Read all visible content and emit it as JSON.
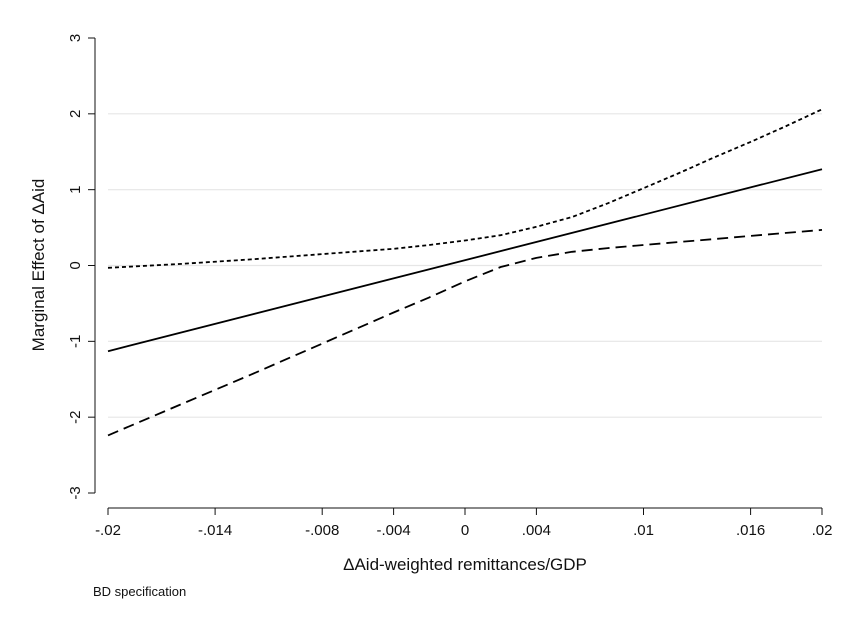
{
  "chart_data": {
    "type": "line",
    "title": "",
    "xlabel": "ΔAid-weighted remittances/GDP",
    "ylabel": "Marginal Effect of ΔAid",
    "note": "BD specification",
    "xlim": [
      -0.02,
      0.02
    ],
    "ylim": [
      -3,
      3
    ],
    "x_ticks": [
      {
        "value": -0.02,
        "label": "-.02"
      },
      {
        "value": -0.014,
        "label": "-.014"
      },
      {
        "value": -0.008,
        "label": "-.008"
      },
      {
        "value": -0.004,
        "label": "-.004"
      },
      {
        "value": 0,
        "label": "0"
      },
      {
        "value": 0.004,
        "label": ".004"
      },
      {
        "value": 0.01,
        "label": ".01"
      },
      {
        "value": 0.016,
        "label": ".016"
      },
      {
        "value": 0.02,
        "label": ".02"
      }
    ],
    "y_ticks": [
      {
        "value": -3,
        "label": "-3"
      },
      {
        "value": -2,
        "label": "-2"
      },
      {
        "value": -1,
        "label": "-1"
      },
      {
        "value": 0,
        "label": "0"
      },
      {
        "value": 1,
        "label": "1"
      },
      {
        "value": 2,
        "label": "2"
      },
      {
        "value": 3,
        "label": "3"
      }
    ],
    "grid": "horizontal",
    "legend": "none",
    "series": [
      {
        "style": "solid",
        "x": [
          -0.02,
          0.02
        ],
        "y": [
          -1.13,
          1.27
        ]
      },
      {
        "style": "short-dash",
        "x": [
          -0.02,
          -0.016,
          -0.012,
          -0.008,
          -0.004,
          -0.002,
          0,
          0.002,
          0.004,
          0.006,
          0.008,
          0.01,
          0.012,
          0.014,
          0.016,
          0.018,
          0.02
        ],
        "y": [
          -0.03,
          0.02,
          0.08,
          0.15,
          0.22,
          0.27,
          0.33,
          0.4,
          0.51,
          0.64,
          0.82,
          1.02,
          1.22,
          1.43,
          1.63,
          1.84,
          2.06
        ]
      },
      {
        "style": "long-dash",
        "x": [
          -0.02,
          -0.016,
          -0.012,
          -0.008,
          -0.004,
          -0.002,
          0,
          0.002,
          0.004,
          0.006,
          0.008,
          0.01,
          0.012,
          0.014,
          0.016,
          0.018,
          0.02
        ],
        "y": [
          -2.24,
          -1.84,
          -1.44,
          -1.03,
          -0.62,
          -0.42,
          -0.21,
          -0.02,
          0.1,
          0.18,
          0.23,
          0.27,
          0.31,
          0.35,
          0.39,
          0.43,
          0.47
        ]
      }
    ]
  }
}
